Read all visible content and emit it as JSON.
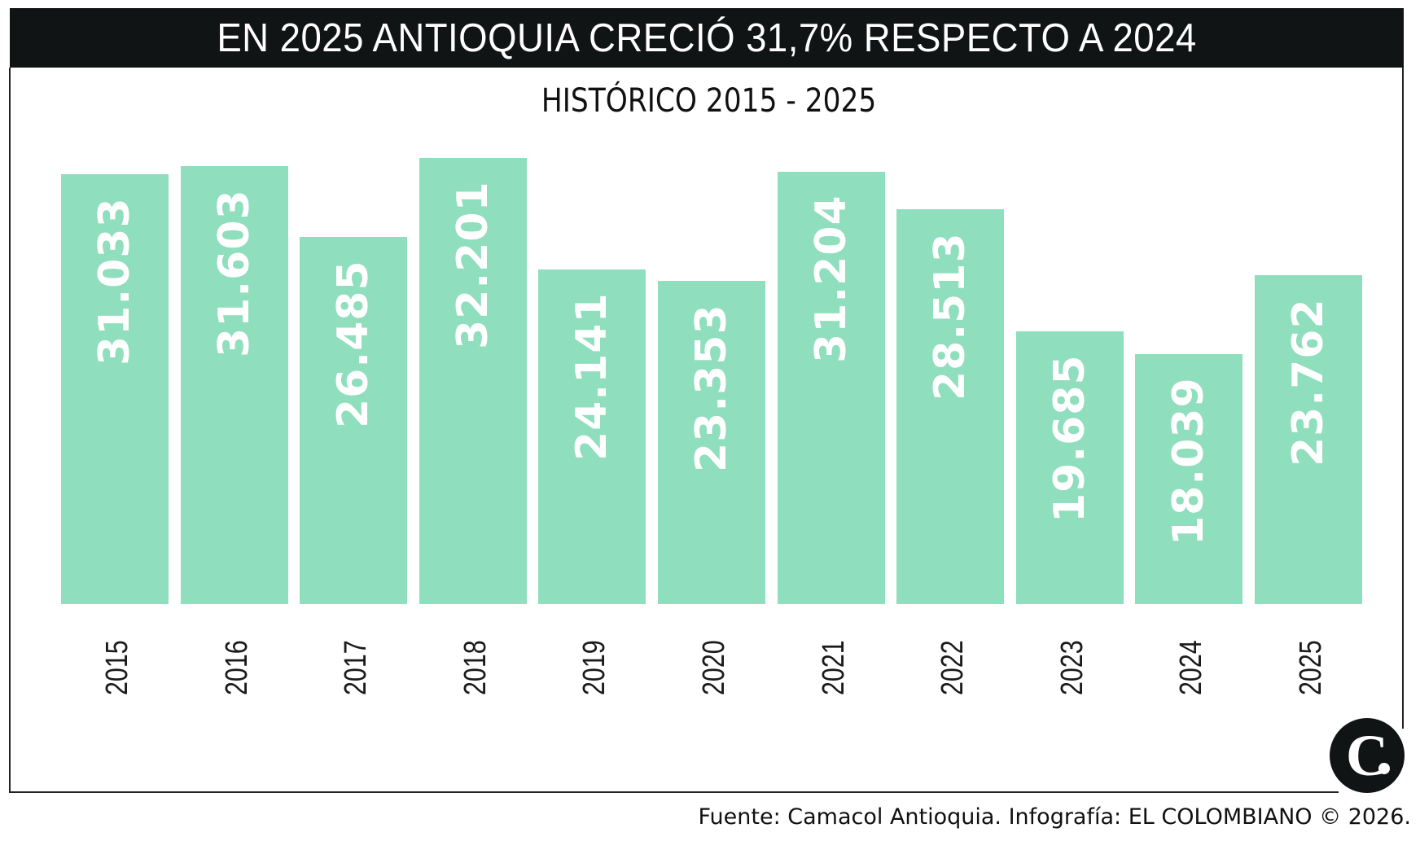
{
  "header": {
    "title": "EN 2025 ANTIOQUIA CRECIÓ 31,7% RESPECTO A 2024"
  },
  "subtitle": "HISTÓRICO 2015 - 2025",
  "footer": {
    "source": "Fuente: Camacol Antioquia. Infografía: EL COLOMBIANO © 2026."
  },
  "logo": {
    "icon": "el-colombiano-c-logo",
    "glyph": "C"
  },
  "colors": {
    "bar": "#8fdebd",
    "header_bg": "#111414",
    "bar_label": "#ffffff",
    "text": "#111111"
  },
  "chart_data": {
    "type": "bar",
    "title": "EN 2025 ANTIOQUIA CRECIÓ 31,7% RESPECTO A 2024",
    "subtitle": "HISTÓRICO 2015 - 2025",
    "xlabel": "",
    "ylabel": "",
    "categories": [
      "2015",
      "2016",
      "2017",
      "2018",
      "2019",
      "2020",
      "2021",
      "2022",
      "2023",
      "2024",
      "2025"
    ],
    "values": [
      31033,
      31603,
      26485,
      32201,
      24141,
      23353,
      31204,
      28513,
      19685,
      18039,
      23762
    ],
    "labels": [
      "31.033",
      "31.603",
      "26.485",
      "32.201",
      "24.141",
      "23.353",
      "31.204",
      "28.513",
      "19.685",
      "18.039",
      "23.762"
    ],
    "ylim": [
      0,
      32201
    ],
    "grid": false,
    "legend": null,
    "annotations": [
      "Values shown vertically inside bars",
      "Year labels rotated vertically below bars"
    ],
    "source": "Fuente: Camacol Antioquia. Infografía: EL COLOMBIANO © 2026."
  }
}
